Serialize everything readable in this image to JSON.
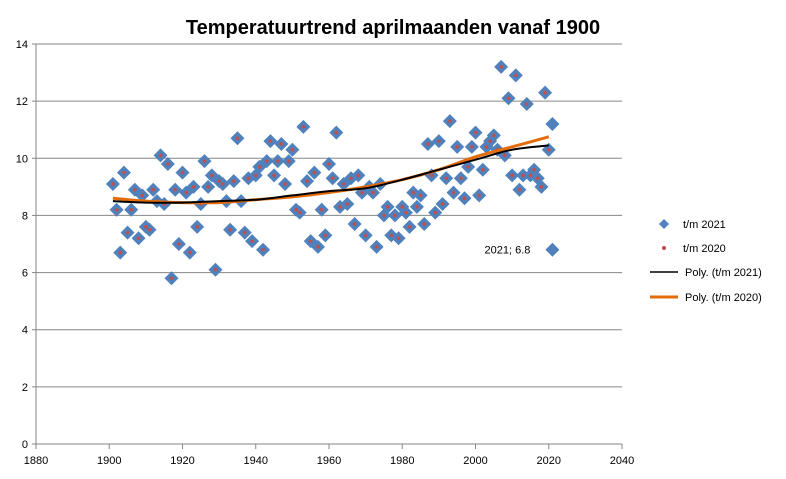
{
  "chart_data": {
    "type": "scatter",
    "title": "Temperatuurtrend aprilmaanden vanaf 1900",
    "xlabel": "",
    "ylabel": "",
    "xlim": [
      1880,
      2040
    ],
    "ylim": [
      0,
      14
    ],
    "x_ticks": [
      1880,
      1900,
      1920,
      1940,
      1960,
      1980,
      2000,
      2020,
      2040
    ],
    "y_ticks": [
      0,
      2,
      4,
      6,
      8,
      10,
      12,
      14
    ],
    "x_tick_labels": [
      "1880",
      "1900",
      "1920",
      "1940",
      "1960",
      "1980",
      "2000",
      "2020",
      "2040"
    ],
    "y_tick_labels": [
      "0",
      "2",
      "4",
      "6",
      "8",
      "10",
      "12",
      "14"
    ],
    "grid": "horizontal",
    "legend_position": "right",
    "colors": {
      "scatter_2021": "#4f81bd",
      "scatter_2020": "#c0504d",
      "trend_2021": "#000000",
      "trend_2020": "#e46c0a",
      "gridline": "#868686"
    },
    "series": [
      {
        "name": "t/m 2021",
        "marker": "diamond",
        "points": [
          [
            1901,
            9.1
          ],
          [
            1902,
            8.2
          ],
          [
            1903,
            6.7
          ],
          [
            1904,
            9.5
          ],
          [
            1905,
            7.4
          ],
          [
            1906,
            8.2
          ],
          [
            1907,
            8.9
          ],
          [
            1908,
            7.2
          ],
          [
            1909,
            8.7
          ],
          [
            1910,
            7.6
          ],
          [
            1911,
            7.5
          ],
          [
            1912,
            8.9
          ],
          [
            1913,
            8.5
          ],
          [
            1914,
            10.1
          ],
          [
            1915,
            8.4
          ],
          [
            1916,
            9.8
          ],
          [
            1917,
            5.8
          ],
          [
            1918,
            8.9
          ],
          [
            1919,
            7.0
          ],
          [
            1920,
            9.5
          ],
          [
            1921,
            8.8
          ],
          [
            1922,
            6.7
          ],
          [
            1923,
            9.0
          ],
          [
            1924,
            7.6
          ],
          [
            1925,
            8.4
          ],
          [
            1926,
            9.9
          ],
          [
            1927,
            9.0
          ],
          [
            1928,
            9.4
          ],
          [
            1929,
            6.1
          ],
          [
            1930,
            9.2
          ],
          [
            1931,
            9.1
          ],
          [
            1932,
            8.5
          ],
          [
            1933,
            7.5
          ],
          [
            1934,
            9.2
          ],
          [
            1935,
            10.7
          ],
          [
            1936,
            8.5
          ],
          [
            1937,
            7.4
          ],
          [
            1938,
            9.3
          ],
          [
            1939,
            7.1
          ],
          [
            1940,
            9.4
          ],
          [
            1941,
            9.7
          ],
          [
            1942,
            6.8
          ],
          [
            1943,
            9.9
          ],
          [
            1944,
            10.6
          ],
          [
            1945,
            9.4
          ],
          [
            1946,
            9.9
          ],
          [
            1947,
            10.5
          ],
          [
            1948,
            9.1
          ],
          [
            1949,
            9.9
          ],
          [
            1950,
            10.3
          ],
          [
            1951,
            8.2
          ],
          [
            1952,
            8.1
          ],
          [
            1953,
            11.1
          ],
          [
            1954,
            9.2
          ],
          [
            1955,
            7.1
          ],
          [
            1956,
            9.5
          ],
          [
            1957,
            6.9
          ],
          [
            1958,
            8.2
          ],
          [
            1959,
            7.3
          ],
          [
            1960,
            9.8
          ],
          [
            1961,
            9.3
          ],
          [
            1962,
            10.9
          ],
          [
            1963,
            8.3
          ],
          [
            1964,
            9.1
          ],
          [
            1965,
            8.4
          ],
          [
            1966,
            9.3
          ],
          [
            1967,
            7.7
          ],
          [
            1968,
            9.4
          ],
          [
            1969,
            8.8
          ],
          [
            1970,
            7.3
          ],
          [
            1971,
            9.0
          ],
          [
            1972,
            8.8
          ],
          [
            1973,
            6.9
          ],
          [
            1974,
            9.1
          ],
          [
            1975,
            8.0
          ],
          [
            1976,
            8.3
          ],
          [
            1977,
            7.3
          ],
          [
            1978,
            8.0
          ],
          [
            1979,
            7.2
          ],
          [
            1980,
            8.3
          ],
          [
            1981,
            8.1
          ],
          [
            1982,
            7.6
          ],
          [
            1983,
            8.8
          ],
          [
            1984,
            8.3
          ],
          [
            1985,
            8.7
          ],
          [
            1986,
            7.7
          ],
          [
            1987,
            10.5
          ],
          [
            1988,
            9.4
          ],
          [
            1989,
            8.1
          ],
          [
            1990,
            10.6
          ],
          [
            1991,
            8.4
          ],
          [
            1992,
            9.3
          ],
          [
            1993,
            11.3
          ],
          [
            1994,
            8.8
          ],
          [
            1995,
            10.4
          ],
          [
            1996,
            9.3
          ],
          [
            1997,
            8.6
          ],
          [
            1998,
            9.7
          ],
          [
            1999,
            10.4
          ],
          [
            2000,
            10.9
          ],
          [
            2001,
            8.7
          ],
          [
            2002,
            9.6
          ],
          [
            2003,
            10.4
          ],
          [
            2004,
            10.6
          ],
          [
            2005,
            10.8
          ],
          [
            2006,
            10.3
          ],
          [
            2007,
            13.2
          ],
          [
            2008,
            10.1
          ],
          [
            2009,
            12.1
          ],
          [
            2010,
            9.4
          ],
          [
            2011,
            12.9
          ],
          [
            2012,
            8.9
          ],
          [
            2013,
            9.4
          ],
          [
            2014,
            11.9
          ],
          [
            2015,
            9.4
          ],
          [
            2016,
            9.6
          ],
          [
            2017,
            9.3
          ],
          [
            2018,
            9.0
          ],
          [
            2019,
            12.3
          ],
          [
            2020,
            10.3
          ],
          [
            2021,
            11.2
          ],
          [
            2021,
            6.8
          ]
        ]
      },
      {
        "name": "t/m 2020",
        "marker": "dot"
      },
      {
        "name": "Poly. (t/m 2021)",
        "type": "line",
        "points": [
          [
            1901,
            8.5
          ],
          [
            1910,
            8.45
          ],
          [
            1920,
            8.45
          ],
          [
            1930,
            8.5
          ],
          [
            1940,
            8.55
          ],
          [
            1950,
            8.7
          ],
          [
            1960,
            8.85
          ],
          [
            1970,
            8.95
          ],
          [
            1980,
            9.25
          ],
          [
            1990,
            9.6
          ],
          [
            2000,
            9.95
          ],
          [
            2010,
            10.3
          ],
          [
            2020,
            10.45
          ]
        ]
      },
      {
        "name": "Poly. (t/m 2020)",
        "type": "line",
        "points": [
          [
            1901,
            8.6
          ],
          [
            1910,
            8.5
          ],
          [
            1920,
            8.45
          ],
          [
            1930,
            8.45
          ],
          [
            1940,
            8.55
          ],
          [
            1950,
            8.65
          ],
          [
            1960,
            8.8
          ],
          [
            1970,
            9.0
          ],
          [
            1980,
            9.25
          ],
          [
            1990,
            9.6
          ],
          [
            2000,
            10.05
          ],
          [
            2010,
            10.4
          ],
          [
            2020,
            10.75
          ]
        ]
      }
    ],
    "annotations": [
      {
        "text": "2021; 6.8",
        "x": 2021,
        "y": 6.8
      }
    ]
  }
}
